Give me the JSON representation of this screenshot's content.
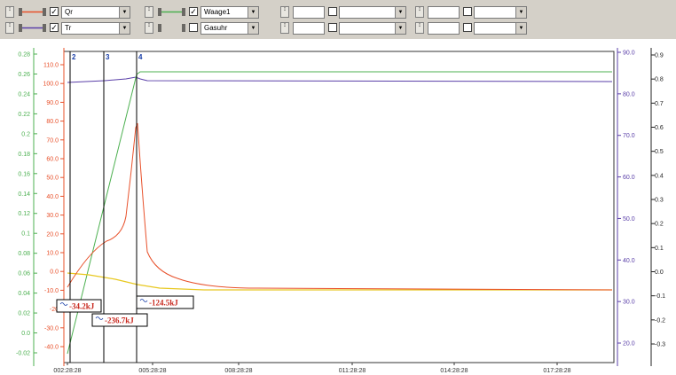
{
  "toolbar": {
    "row1": {
      "g1": {
        "checked": "✓",
        "channel": "Qr",
        "color": "#e8502a"
      },
      "g2": {
        "checked": "✓",
        "channel": "Waage1",
        "color": "#4cb050"
      },
      "g3": {
        "checked": "",
        "channel": ""
      },
      "g4": {
        "checked": "",
        "channel": ""
      }
    },
    "row2": {
      "g1": {
        "checked": "✓",
        "channel": "Tr",
        "color": "#5a3fa8"
      },
      "g2": {
        "checked": "",
        "channel": "Gasuhr"
      },
      "g3": {
        "checked": "",
        "channel": ""
      },
      "g4": {
        "checked": "",
        "channel": ""
      }
    },
    "dropdown_glyph": "▼",
    "spin_glyph": "↕"
  },
  "chart_data": {
    "type": "line",
    "x_ticks": [
      "002:28:28",
      "005:28:28",
      "008:28:28",
      "011:28:28",
      "014:28:28",
      "017:28:28"
    ],
    "axes": {
      "green_left": {
        "ticks": [
          "0.28",
          "0.26",
          "0.24",
          "0.22",
          "0.2",
          "0.18",
          "0.16",
          "0.14",
          "0.12",
          "0.1",
          "0.08",
          "0.06",
          "0.04",
          "0.02",
          "0.0",
          "-0.02"
        ],
        "color": "#4cb050"
      },
      "red_left": {
        "ticks": [
          "110.0",
          "100.0",
          "90.0",
          "80.0",
          "70.0",
          "60.0",
          "50.0",
          "40.0",
          "30.0",
          "20.0",
          "10.0",
          "0.0",
          "-10.0",
          "-20",
          "-30.0",
          "-40.0"
        ],
        "color": "#e8502a"
      },
      "purple_right": {
        "ticks": [
          "90.0",
          "80.0",
          "70.0",
          "60.0",
          "50.0",
          "40.0",
          "30.0",
          "20.0"
        ],
        "color": "#5a3fa8"
      },
      "black_right": {
        "ticks": [
          "0.9",
          "0.8",
          "0.7",
          "0.6",
          "0.5",
          "0.4",
          "0.3",
          "0.2",
          "0.1",
          "0.0",
          "-0.1",
          "-0.2",
          "-0.3"
        ],
        "color": "#222222"
      }
    },
    "cursors": [
      {
        "label": "2"
      },
      {
        "label": "3"
      },
      {
        "label": "4"
      }
    ],
    "annotations": [
      {
        "text": "-34.2kJ"
      },
      {
        "text": "-236.7kJ"
      },
      {
        "text": "-124.5kJ"
      }
    ],
    "series": [
      {
        "name": "Qr",
        "color": "#e8502a"
      },
      {
        "name": "Waage1",
        "color": "#4cb050"
      },
      {
        "name": "Tr",
        "color": "#5a3fa8"
      },
      {
        "name": "",
        "color": "#e8c820"
      }
    ]
  }
}
